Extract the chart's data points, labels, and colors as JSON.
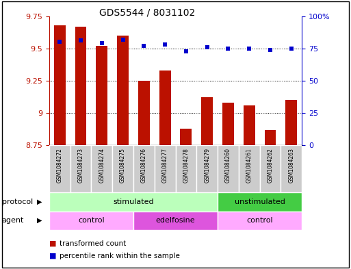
{
  "title": "GDS5544 / 8031102",
  "samples": [
    "GSM1084272",
    "GSM1084273",
    "GSM1084274",
    "GSM1084275",
    "GSM1084276",
    "GSM1084277",
    "GSM1084278",
    "GSM1084279",
    "GSM1084260",
    "GSM1084261",
    "GSM1084262",
    "GSM1084263"
  ],
  "bar_values": [
    9.68,
    9.67,
    9.52,
    9.6,
    9.25,
    9.33,
    8.88,
    9.12,
    9.08,
    9.06,
    8.87,
    9.1
  ],
  "scatter_values": [
    80,
    81,
    79,
    82,
    77,
    78,
    73,
    76,
    75,
    75,
    74,
    75
  ],
  "bar_bottom": 8.75,
  "ylim_left": [
    8.75,
    9.75
  ],
  "ylim_right": [
    0,
    100
  ],
  "yticks_left": [
    8.75,
    9.0,
    9.25,
    9.5,
    9.75
  ],
  "ytick_labels_left": [
    "8.75",
    "9",
    "9.25",
    "9.5",
    "9.75"
  ],
  "yticks_right": [
    0,
    25,
    50,
    75,
    100
  ],
  "ytick_labels_right": [
    "0",
    "25",
    "50",
    "75",
    "100%"
  ],
  "bar_color": "#bb1100",
  "scatter_color": "#0000cc",
  "protocol_groups": [
    {
      "label": "stimulated",
      "start": 0,
      "end": 7,
      "color": "#bbffbb"
    },
    {
      "label": "unstimulated",
      "start": 8,
      "end": 11,
      "color": "#44cc44"
    }
  ],
  "agent_groups": [
    {
      "label": "control",
      "start": 0,
      "end": 3,
      "color": "#ffaaff"
    },
    {
      "label": "edelfosine",
      "start": 4,
      "end": 7,
      "color": "#dd55dd"
    },
    {
      "label": "control",
      "start": 8,
      "end": 11,
      "color": "#ffaaff"
    }
  ],
  "legend_bar_label": "transformed count",
  "legend_scatter_label": "percentile rank within the sample",
  "protocol_label": "protocol",
  "agent_label": "agent",
  "bar_width": 0.55,
  "sample_box_color": "#cccccc",
  "sample_area_color": "#dddddd"
}
